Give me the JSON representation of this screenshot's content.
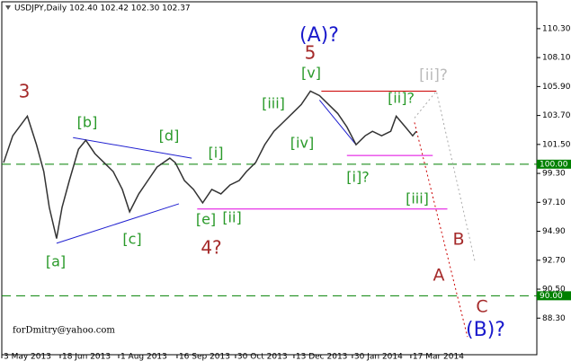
{
  "chart_data": {
    "type": "line",
    "title": "USDJPY,Daily  102.40 102.42 102.30 102.37",
    "footer": "forDmitry@yahoo.com",
    "color": "#333333",
    "x": [
      1,
      6,
      14,
      19,
      23,
      26,
      30,
      33,
      37,
      42,
      46,
      51,
      56,
      61,
      66,
      70,
      75,
      80,
      85,
      92,
      95,
      100,
      105,
      110,
      115,
      120,
      125,
      130,
      134,
      139,
      144,
      149,
      154,
      159,
      164,
      169,
      174,
      179,
      184,
      189,
      194,
      199,
      203,
      208,
      213,
      216,
      221,
      225,
      227
    ],
    "values": [
      100.12,
      102.16,
      103.65,
      101.48,
      99.44,
      96.72,
      94.35,
      96.72,
      98.76,
      101.14,
      101.82,
      100.8,
      100.12,
      99.44,
      98.08,
      96.38,
      97.74,
      98.76,
      99.78,
      100.46,
      100.12,
      98.76,
      98.08,
      97.06,
      98.08,
      97.74,
      98.42,
      98.76,
      99.44,
      100.12,
      101.48,
      102.5,
      103.17,
      103.85,
      104.53,
      105.55,
      105.21,
      104.53,
      103.85,
      102.83,
      101.48,
      102.16,
      102.5,
      102.16,
      102.5,
      103.65,
      102.83,
      102.16,
      102.5
    ],
    "xlim": [
      0,
      293
    ],
    "xticks": [
      {
        "value": 0,
        "label": "3 May 2013"
      },
      {
        "value": 32,
        "label": "18 Jun 2013"
      },
      {
        "value": 64,
        "label": "1 Aug 2013"
      },
      {
        "value": 96,
        "label": "16 Sep 2013"
      },
      {
        "value": 128,
        "label": "30 Oct 2013"
      },
      {
        "value": 160,
        "label": "13 Dec 2013"
      },
      {
        "value": 192,
        "label": "30 Jan 2014"
      },
      {
        "value": 224,
        "label": "17 Mar 2014"
      }
    ],
    "ylim": [
      85.52,
      112.34
    ],
    "yticks": [
      {
        "value": 110.3,
        "label": "110.30"
      },
      {
        "value": 108.1,
        "label": "108.10"
      },
      {
        "value": 105.9,
        "label": "105.90"
      },
      {
        "value": 103.7,
        "label": "103.70"
      },
      {
        "value": 101.5,
        "label": "101.50"
      },
      {
        "value": 99.3,
        "label": "99.30"
      },
      {
        "value": 97.1,
        "label": "97.10"
      },
      {
        "value": 94.9,
        "label": "94.90"
      },
      {
        "value": 92.7,
        "label": "92.70"
      },
      {
        "value": 90.5,
        "label": "90.50"
      },
      {
        "value": 88.3,
        "label": "88.30"
      }
    ],
    "hlines": [
      {
        "value": 100,
        "label": "100.00",
        "color": "#008000"
      },
      {
        "value": 90,
        "label": "90.00",
        "color": "#008000"
      }
    ],
    "lines": [
      {
        "x": [
          175,
          238
        ],
        "y": [
          105.55,
          105.55
        ],
        "color": "#cc0000",
        "style": "solid"
      },
      {
        "x": [
          189,
          236
        ],
        "y": [
          100.66,
          100.66
        ],
        "color": "#e000e0",
        "style": "solid"
      },
      {
        "x": [
          107,
          244
        ],
        "y": [
          96.59,
          96.59
        ],
        "color": "#e000e0",
        "style": "solid"
      },
      {
        "x": [
          30,
          97
        ],
        "y": [
          93.99,
          96.99
        ],
        "color": "#2020d0",
        "style": "solid"
      },
      {
        "x": [
          39,
          104
        ],
        "y": [
          102.02,
          100.46
        ],
        "color": "#2020d0",
        "style": "solid"
      },
      {
        "x": [
          174,
          194
        ],
        "y": [
          104.87,
          101.48
        ],
        "color": "#2020d0",
        "style": "solid"
      },
      {
        "x": [
          226,
          255
        ],
        "y": [
          103.17,
          86.88
        ],
        "color": "#cc0000",
        "style": "dotted"
      },
      {
        "x": [
          226,
          238,
          259
        ],
        "y": [
          103.51,
          105.55,
          92.65
        ],
        "color": "#aaaaaa",
        "style": "dotted"
      }
    ],
    "annotations": [
      {
        "text": "3",
        "color": "#a52a2a"
      },
      {
        "text": "[b]",
        "color": "#2a9a2a"
      },
      {
        "text": "[d]",
        "color": "#2a9a2a"
      },
      {
        "text": "[a]",
        "color": "#2a9a2a"
      },
      {
        "text": "[c]",
        "color": "#2a9a2a"
      },
      {
        "text": "[i]",
        "color": "#2a9a2a"
      },
      {
        "text": "[e]",
        "color": "#2a9a2a"
      },
      {
        "text": "[ii]",
        "color": "#2a9a2a"
      },
      {
        "text": "4?",
        "color": "#a52a2a"
      },
      {
        "text": "[iii]",
        "color": "#2a9a2a"
      },
      {
        "text": "[iv]",
        "color": "#2a9a2a"
      },
      {
        "text": "[v]",
        "color": "#2a9a2a"
      },
      {
        "text": "5",
        "color": "#a52a2a"
      },
      {
        "text": "(A)?",
        "color": "#1a1acc"
      },
      {
        "text": "[ii]?",
        "color": "#2a9a2a"
      },
      {
        "text": "[i]?",
        "color": "#2a9a2a"
      },
      {
        "text": "[iii]",
        "color": "#2a9a2a"
      },
      {
        "text": "[ii]?",
        "color": "#bbbbbb"
      },
      {
        "text": "B",
        "color": "#a52a2a"
      },
      {
        "text": "A",
        "color": "#a52a2a"
      },
      {
        "text": "C",
        "color": "#a52a2a"
      },
      {
        "text": "(B)?",
        "color": "#1a1acc"
      }
    ]
  }
}
